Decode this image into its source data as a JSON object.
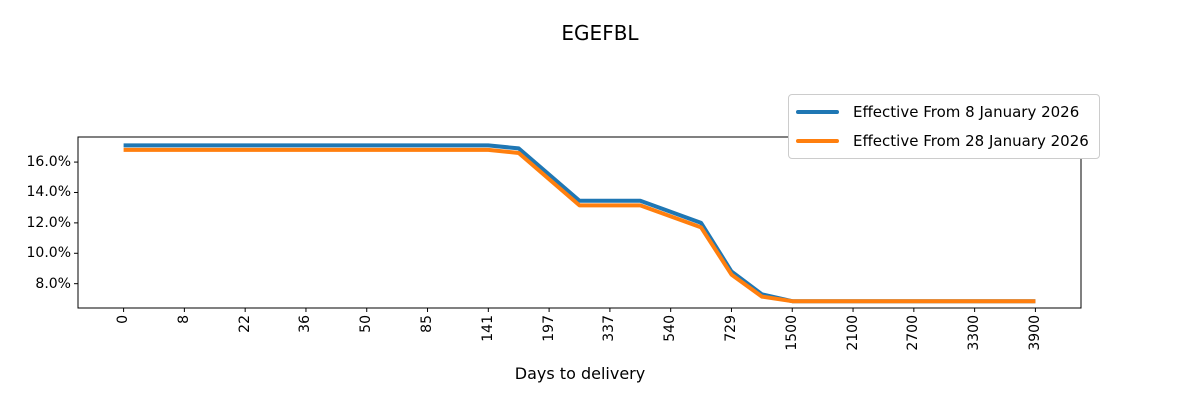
{
  "chart_data": {
    "type": "line",
    "title": "EGEFBL",
    "xlabel": "Days to delivery",
    "ylabel": "",
    "grid": false,
    "legend_position": "upper right",
    "x_tick_labels": [
      "0",
      "8",
      "22",
      "36",
      "50",
      "85",
      "141",
      "197",
      "337",
      "540",
      "729",
      "1500",
      "2100",
      "2700",
      "3300",
      "3900"
    ],
    "x_tick_rotation_deg": 90,
    "y_ticks": [
      {
        "value": 16,
        "label": "16.0%"
      },
      {
        "value": 14,
        "label": "14.0%"
      },
      {
        "value": 12,
        "label": "12.0%"
      },
      {
        "value": 10,
        "label": "10.0%"
      },
      {
        "value": 8,
        "label": "8.0%"
      }
    ],
    "ylim": [
      6.4,
      17.65
    ],
    "xlim_index": [
      -0.75,
      15.75
    ],
    "series": [
      {
        "name": "Effective From 8 January 2026",
        "color": "#1f77b4",
        "points": [
          [
            0,
            17.1
          ],
          [
            6,
            17.1
          ],
          [
            6.5,
            16.9
          ],
          [
            7.5,
            13.45
          ],
          [
            8.5,
            13.45
          ],
          [
            9.5,
            12.0
          ],
          [
            10,
            8.8
          ],
          [
            10.5,
            7.3
          ],
          [
            11,
            6.85
          ],
          [
            15,
            6.85
          ]
        ]
      },
      {
        "name": "Effective From 28 January 2026",
        "color": "#ff7f0e",
        "points": [
          [
            0,
            16.8
          ],
          [
            6,
            16.8
          ],
          [
            6.5,
            16.6
          ],
          [
            7.5,
            13.15
          ],
          [
            8.5,
            13.15
          ],
          [
            9.5,
            11.7
          ],
          [
            10,
            8.6
          ],
          [
            10.5,
            7.15
          ],
          [
            11,
            6.85
          ],
          [
            15,
            6.85
          ]
        ]
      }
    ]
  }
}
